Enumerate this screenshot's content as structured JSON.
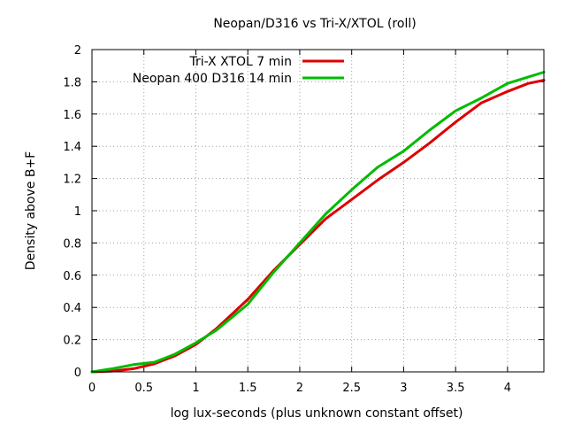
{
  "chart_data": {
    "type": "line",
    "title": "Neopan/D316 vs Tri-X/XTOL (roll)",
    "xlabel": "log lux-seconds (plus unknown constant offset)",
    "ylabel": "Density above B+F",
    "xlim": [
      0,
      4.35
    ],
    "ylim": [
      0,
      2
    ],
    "xticks": [
      0,
      0.5,
      1,
      1.5,
      2,
      2.5,
      3,
      3.5,
      4
    ],
    "xtick_labels": [
      "0",
      "0.5",
      "1",
      "1.5",
      "2",
      "2.5",
      "3",
      "3.5",
      "4"
    ],
    "yticks": [
      0,
      0.2,
      0.4,
      0.6,
      0.8,
      1,
      1.2,
      1.4,
      1.6,
      1.8,
      2
    ],
    "ytick_labels": [
      "0",
      "0.2",
      "0.4",
      "0.6",
      "0.8",
      "1",
      "1.2",
      "1.4",
      "1.6",
      "1.8",
      "2"
    ],
    "grid": true,
    "legend_position": "top-right",
    "series": [
      {
        "name": "Tri-X XTOL 7 min",
        "color": "#dd0000",
        "x": [
          0,
          0.2,
          0.4,
          0.6,
          0.8,
          1.0,
          1.2,
          1.5,
          1.75,
          2.0,
          2.25,
          2.5,
          2.75,
          3.0,
          3.25,
          3.5,
          3.75,
          4.0,
          4.2,
          4.35
        ],
        "y": [
          0,
          0.005,
          0.02,
          0.05,
          0.1,
          0.17,
          0.27,
          0.45,
          0.63,
          0.79,
          0.95,
          1.07,
          1.19,
          1.3,
          1.42,
          1.55,
          1.67,
          1.74,
          1.79,
          1.81
        ]
      },
      {
        "name": "Neopan 400 D316 14 min",
        "color": "#00bb00",
        "x": [
          0,
          0.2,
          0.4,
          0.6,
          0.8,
          1.0,
          1.2,
          1.5,
          1.75,
          2.0,
          2.25,
          2.5,
          2.75,
          3.0,
          3.25,
          3.5,
          3.75,
          4.0,
          4.2,
          4.35
        ],
        "y": [
          0,
          0.02,
          0.045,
          0.06,
          0.11,
          0.18,
          0.26,
          0.42,
          0.62,
          0.8,
          0.98,
          1.13,
          1.27,
          1.37,
          1.5,
          1.62,
          1.7,
          1.79,
          1.83,
          1.86
        ]
      }
    ]
  }
}
